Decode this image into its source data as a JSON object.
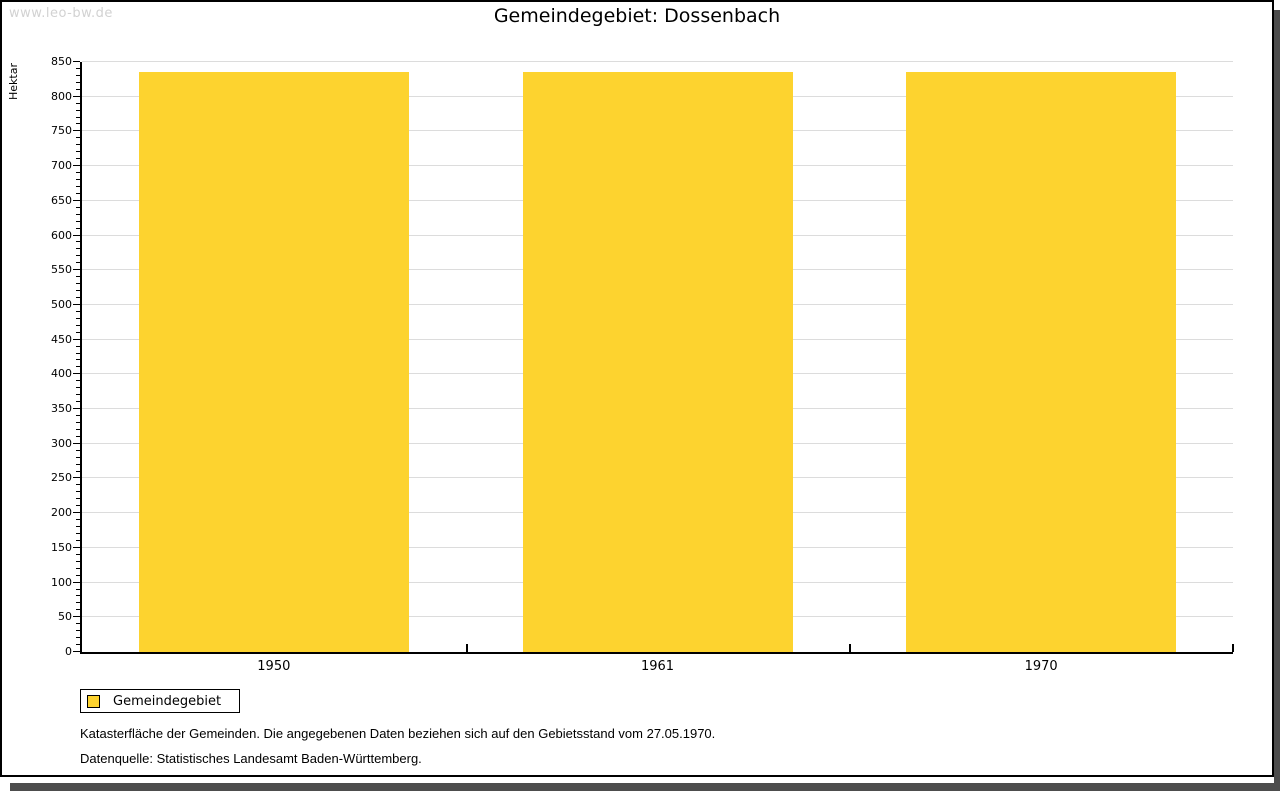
{
  "watermark": "www.leo-bw.de",
  "title": "Gemeindegebiet: Dossenbach",
  "chart_data": {
    "type": "bar",
    "title": "Gemeindegebiet: Dossenbach",
    "categories": [
      "1950",
      "1961",
      "1970"
    ],
    "series": [
      {
        "name": "Gemeindegebiet",
        "values": [
          836,
          836,
          836
        ]
      }
    ],
    "xlabel": "",
    "ylabel": "Hektar",
    "ylim": [
      0,
      850
    ],
    "ytick_major_step": 50,
    "ytick_minor_step": 10,
    "ytick_labels": [
      "0",
      "50",
      "100",
      "150",
      "200",
      "250",
      "300",
      "350",
      "400",
      "450",
      "500",
      "550",
      "600",
      "650",
      "700",
      "750",
      "800",
      "850"
    ],
    "grid": "horizontal-major-only",
    "legend_position": "bottom-left",
    "bar_color": "#FDD32F"
  },
  "legend": {
    "items": [
      {
        "label": "Gemeindegebiet",
        "color": "#FDD32F"
      }
    ]
  },
  "footer": {
    "line1": "Katasterfläche der Gemeinden. Die angegebenen Daten beziehen sich auf den Gebietsstand vom 27.05.1970.",
    "line2": "Datenquelle: Statistisches Landesamt Baden-Württemberg."
  },
  "colors": {
    "bar": "#FDD32F",
    "grid": "#DCDCDC",
    "axis": "#000000",
    "shadow": "#4D4D4D",
    "watermark": "#D2D2D2",
    "background": "#FFFFFF"
  }
}
